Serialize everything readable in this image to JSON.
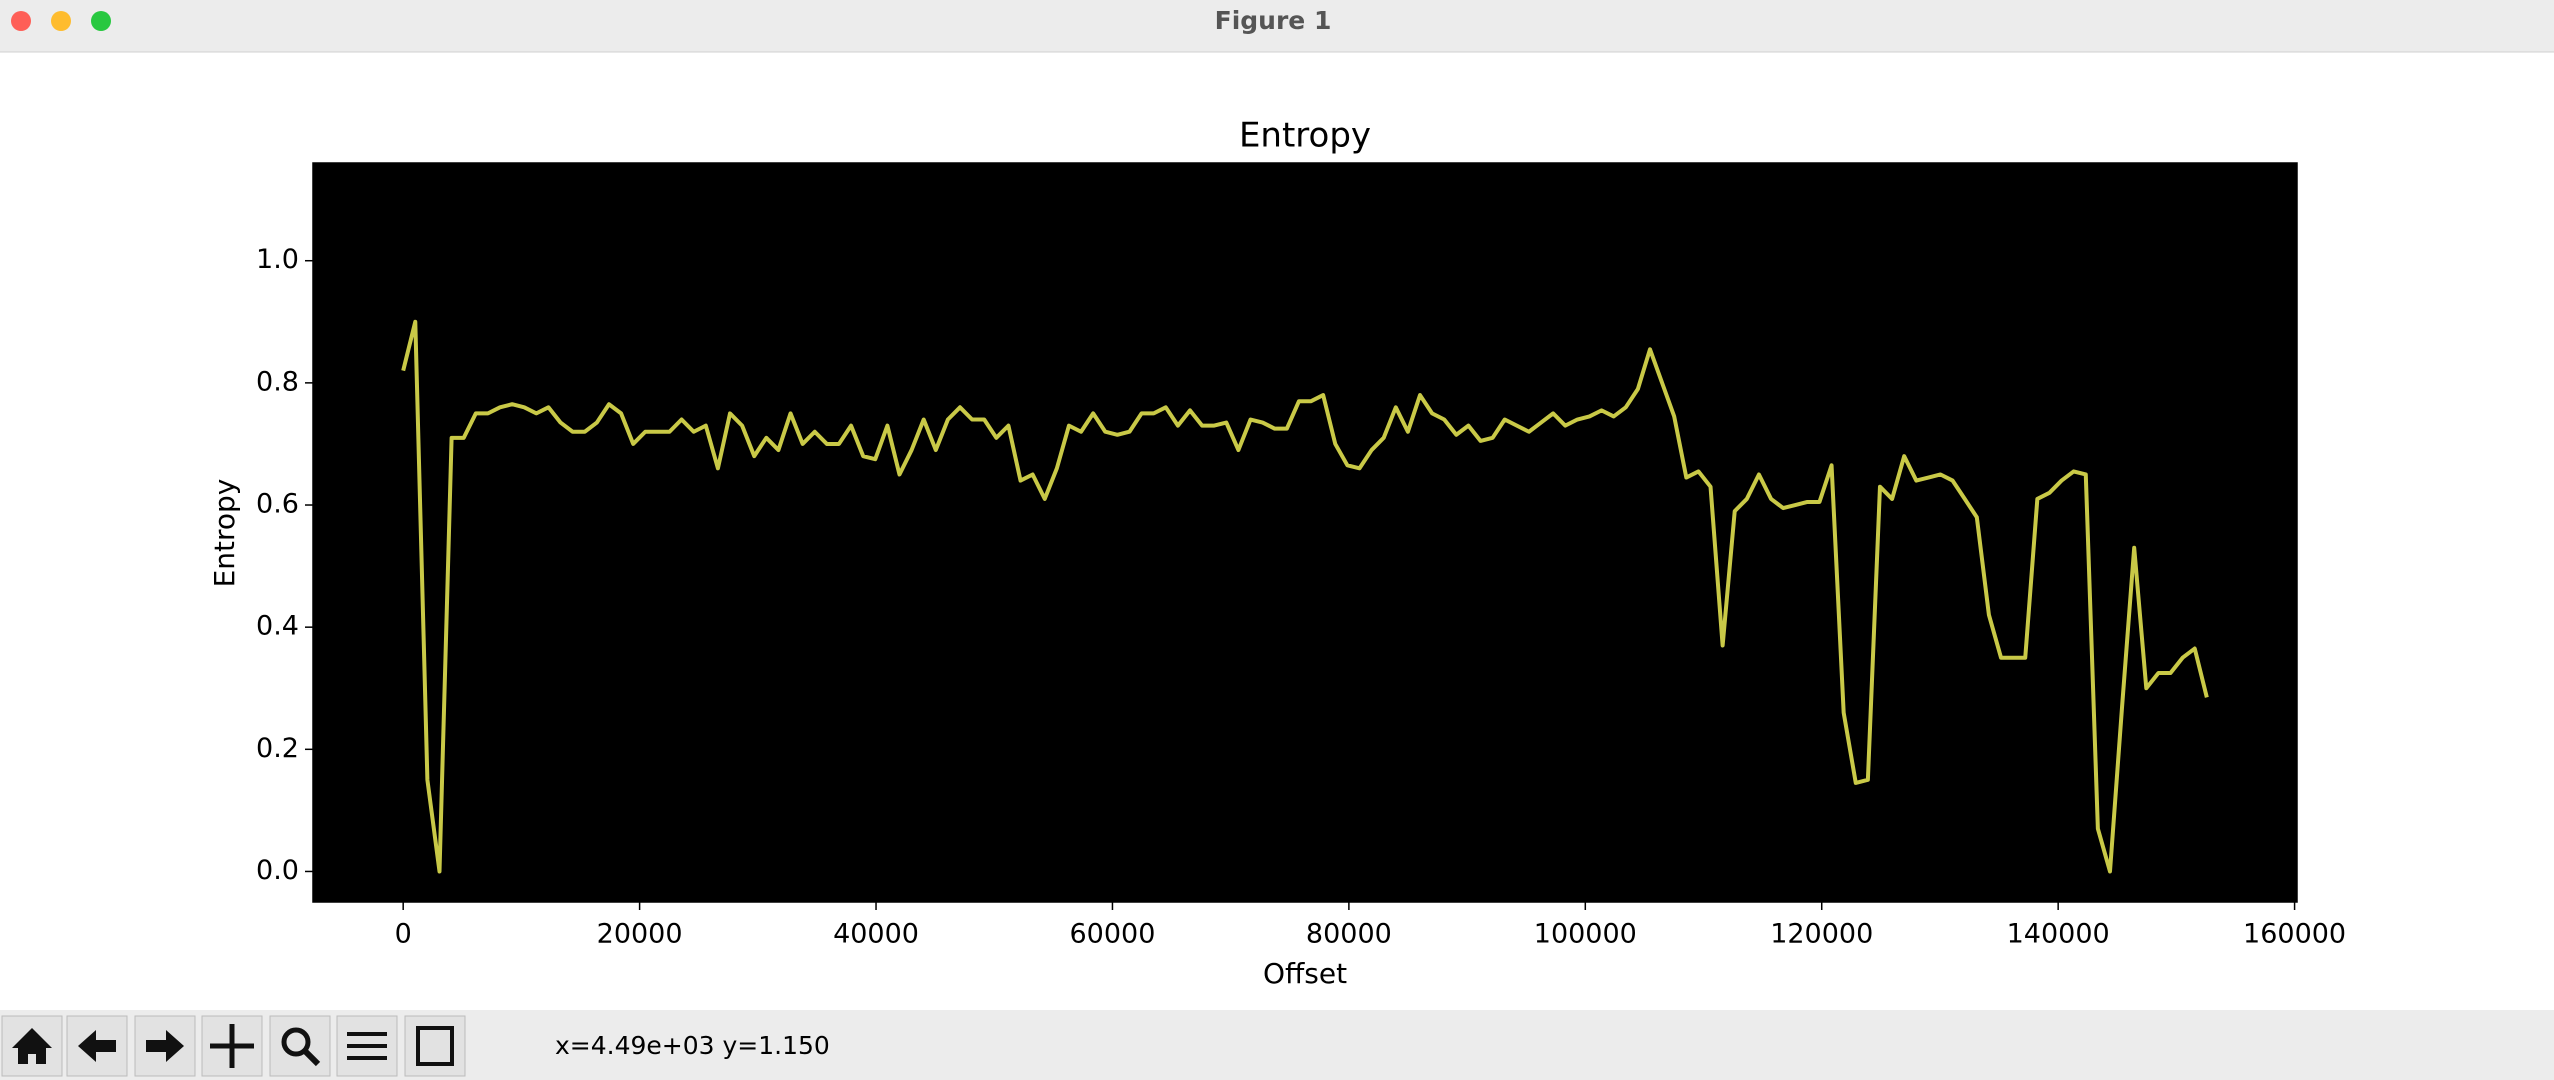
{
  "window": {
    "title": "Figure 1"
  },
  "toolbar": {
    "status": "x=4.49e+03 y=1.150"
  },
  "chart_data": {
    "type": "line",
    "title": "Entropy",
    "x_label": "Offset",
    "y_label": "Entropy",
    "background": "#000000",
    "xlim": [
      -7628.8,
      160204.8
    ],
    "xticks": [
      0,
      20000,
      40000,
      60000,
      80000,
      100000,
      120000,
      140000,
      160000
    ],
    "ylim": [
      -0.05,
      1.16
    ],
    "yticks": [
      {
        "value": 0,
        "label": "0.0"
      },
      0.2,
      0.4,
      0.6,
      0.8,
      {
        "value": 1,
        "label": "1.0"
      }
    ],
    "x": [
      0,
      1024,
      2048,
      3072,
      4096,
      5120,
      6144,
      7168,
      8192,
      9216,
      10240,
      11264,
      12288,
      13312,
      14336,
      15360,
      16384,
      17408,
      18432,
      19456,
      20480,
      21504,
      22528,
      23552,
      24576,
      25600,
      26624,
      27648,
      28672,
      29696,
      30720,
      31744,
      32768,
      33792,
      34816,
      35840,
      36864,
      37888,
      38912,
      39936,
      40960,
      41984,
      43008,
      44032,
      45056,
      46080,
      47104,
      48128,
      49152,
      50176,
      51200,
      52224,
      53248,
      54272,
      55296,
      56320,
      57344,
      58368,
      59392,
      60416,
      61440,
      62464,
      63488,
      64512,
      65536,
      66560,
      67584,
      68608,
      69632,
      70656,
      71680,
      72704,
      73728,
      74752,
      75776,
      76800,
      77824,
      78848,
      79872,
      80896,
      81920,
      82944,
      83968,
      84992,
      86016,
      87040,
      88064,
      89088,
      90112,
      91136,
      92160,
      93184,
      94208,
      95232,
      96256,
      97280,
      98304,
      99328,
      100352,
      101376,
      102400,
      103424,
      104448,
      105472,
      106496,
      107520,
      108544,
      109568,
      110592,
      111616,
      112640,
      113664,
      114688,
      115712,
      116736,
      117760,
      118784,
      119808,
      120832,
      121856,
      122880,
      123904,
      124928,
      125952,
      126976,
      128000,
      129024,
      130048,
      131072,
      132096,
      133120,
      134144,
      135168,
      136192,
      137216,
      138240,
      139264,
      140288,
      141312,
      142336,
      143360,
      144384,
      145408,
      146432,
      147456,
      148480,
      149504,
      150528,
      151552,
      152576
    ],
    "series": [
      {
        "color": "#c9c947",
        "values": [
          0.82,
          0.9,
          0.15,
          0.0,
          0.71,
          0.71,
          0.75,
          0.75,
          0.76,
          0.765,
          0.76,
          0.75,
          0.76,
          0.735,
          0.72,
          0.72,
          0.735,
          0.765,
          0.75,
          0.7,
          0.72,
          0.72,
          0.72,
          0.74,
          0.72,
          0.73,
          0.66,
          0.75,
          0.73,
          0.68,
          0.71,
          0.69,
          0.75,
          0.7,
          0.72,
          0.7,
          0.7,
          0.73,
          0.68,
          0.675,
          0.73,
          0.65,
          0.69,
          0.74,
          0.69,
          0.74,
          0.76,
          0.74,
          0.74,
          0.71,
          0.73,
          0.64,
          0.65,
          0.61,
          0.66,
          0.73,
          0.72,
          0.75,
          0.72,
          0.715,
          0.72,
          0.75,
          0.75,
          0.76,
          0.73,
          0.755,
          0.73,
          0.73,
          0.735,
          0.69,
          0.74,
          0.735,
          0.725,
          0.725,
          0.77,
          0.77,
          0.78,
          0.7,
          0.665,
          0.66,
          0.69,
          0.71,
          0.76,
          0.72,
          0.78,
          0.75,
          0.74,
          0.715,
          0.73,
          0.705,
          0.71,
          0.74,
          0.73,
          0.72,
          0.735,
          0.75,
          0.73,
          0.74,
          0.745,
          0.755,
          0.745,
          0.76,
          0.79,
          0.855,
          0.8,
          0.745,
          0.645,
          0.655,
          0.63,
          0.37,
          0.59,
          0.61,
          0.65,
          0.61,
          0.595,
          0.6,
          0.605,
          0.605,
          0.665,
          0.26,
          0.145,
          0.15,
          0.63,
          0.61,
          0.68,
          0.64,
          0.645,
          0.65,
          0.64,
          0.61,
          0.58,
          0.42,
          0.35,
          0.35,
          0.35,
          0.61,
          0.62,
          0.64,
          0.655,
          0.65,
          0.07,
          0.0,
          0.27,
          0.53,
          0.3,
          0.325,
          0.325,
          0.35,
          0.365,
          0.285
        ]
      }
    ]
  }
}
